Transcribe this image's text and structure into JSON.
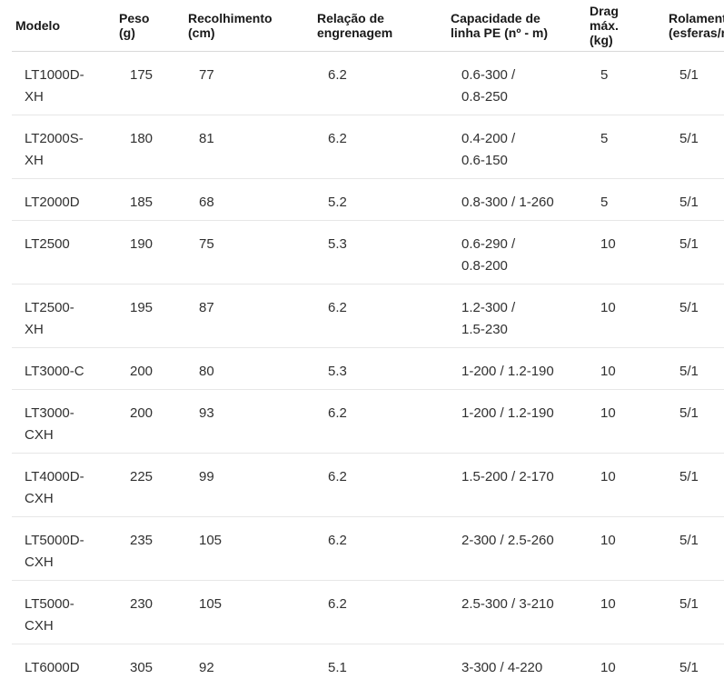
{
  "colors": {
    "background": "#ffffff",
    "header_text": "#191919",
    "body_text": "#303030",
    "header_border": "#d9d9d9",
    "row_border": "#e7e7e7"
  },
  "table": {
    "columns": [
      {
        "id": "modelo",
        "label": "Modelo"
      },
      {
        "id": "peso",
        "label": "Peso\n(g)"
      },
      {
        "id": "recolhimento",
        "label": "Recolhimento\n(cm)"
      },
      {
        "id": "relacao",
        "label": "Relação de\nengrenagem"
      },
      {
        "id": "capacidade",
        "label": "Capacidade de\nlinha PE (nº - m)"
      },
      {
        "id": "drag",
        "label": "Drag\nmáx.\n(kg)"
      },
      {
        "id": "rolamentos",
        "label": "Rolamentos\n(esferas/roletes)"
      }
    ],
    "rows": [
      {
        "modelo": "LT1000D-\nXH",
        "peso": "175",
        "recolhimento": "77",
        "relacao": "6.2",
        "capacidade": "0.6-300 /\n0.8-250",
        "drag": "5",
        "rolamentos": "5/1"
      },
      {
        "modelo": "LT2000S-\nXH",
        "peso": "180",
        "recolhimento": "81",
        "relacao": "6.2",
        "capacidade": "0.4-200 /\n0.6-150",
        "drag": "5",
        "rolamentos": "5/1"
      },
      {
        "modelo": "LT2000D",
        "peso": "185",
        "recolhimento": "68",
        "relacao": "5.2",
        "capacidade": "0.8-300 / 1-260",
        "drag": "5",
        "rolamentos": "5/1"
      },
      {
        "modelo": "LT2500",
        "peso": "190",
        "recolhimento": "75",
        "relacao": "5.3",
        "capacidade": "0.6-290 /\n0.8-200",
        "drag": "10",
        "rolamentos": "5/1"
      },
      {
        "modelo": "LT2500-\nXH",
        "peso": "195",
        "recolhimento": "87",
        "relacao": "6.2",
        "capacidade": "1.2-300 /\n1.5-230",
        "drag": "10",
        "rolamentos": "5/1"
      },
      {
        "modelo": "LT3000-C",
        "peso": "200",
        "recolhimento": "80",
        "relacao": "5.3",
        "capacidade": "1-200 / 1.2-190",
        "drag": "10",
        "rolamentos": "5/1"
      },
      {
        "modelo": "LT3000-\nCXH",
        "peso": "200",
        "recolhimento": "93",
        "relacao": "6.2",
        "capacidade": "1-200 / 1.2-190",
        "drag": "10",
        "rolamentos": "5/1"
      },
      {
        "modelo": "LT4000D-\nCXH",
        "peso": "225",
        "recolhimento": "99",
        "relacao": "6.2",
        "capacidade": "1.5-200 / 2-170",
        "drag": "10",
        "rolamentos": "5/1"
      },
      {
        "modelo": "LT5000D-\nCXH",
        "peso": "235",
        "recolhimento": "105",
        "relacao": "6.2",
        "capacidade": "2-300 / 2.5-260",
        "drag": "10",
        "rolamentos": "5/1"
      },
      {
        "modelo": "LT5000-\nCXH",
        "peso": "230",
        "recolhimento": "105",
        "relacao": "6.2",
        "capacidade": "2.5-300 / 3-210",
        "drag": "10",
        "rolamentos": "5/1"
      },
      {
        "modelo": "LT6000D",
        "peso": "305",
        "recolhimento": "92",
        "relacao": "5.1",
        "capacidade": "3-300 / 4-220",
        "drag": "10",
        "rolamentos": "5/1"
      }
    ]
  },
  "chart_data": {
    "type": "table",
    "title": "",
    "columns": [
      "Modelo",
      "Peso (g)",
      "Recolhimento (cm)",
      "Relação de engrenagem",
      "Capacidade de linha PE (nº - m)",
      "Drag máx. (kg)",
      "Rolamentos (esferas/roletes)"
    ],
    "rows": [
      [
        "LT1000D-XH",
        175,
        77,
        6.2,
        "0.6-300 / 0.8-250",
        5,
        "5/1"
      ],
      [
        "LT2000S-XH",
        180,
        81,
        6.2,
        "0.4-200 / 0.6-150",
        5,
        "5/1"
      ],
      [
        "LT2000D",
        185,
        68,
        5.2,
        "0.8-300 / 1-260",
        5,
        "5/1"
      ],
      [
        "LT2500",
        190,
        75,
        5.3,
        "0.6-290 / 0.8-200",
        10,
        "5/1"
      ],
      [
        "LT2500-XH",
        195,
        87,
        6.2,
        "1.2-300 / 1.5-230",
        10,
        "5/1"
      ],
      [
        "LT3000-C",
        200,
        80,
        5.3,
        "1-200 / 1.2-190",
        10,
        "5/1"
      ],
      [
        "LT3000-CXH",
        200,
        93,
        6.2,
        "1-200 / 1.2-190",
        10,
        "5/1"
      ],
      [
        "LT4000D-CXH",
        225,
        99,
        6.2,
        "1.5-200 / 2-170",
        10,
        "5/1"
      ],
      [
        "LT5000D-CXH",
        235,
        105,
        6.2,
        "2-300 / 2.5-260",
        10,
        "5/1"
      ],
      [
        "LT5000-CXH",
        230,
        105,
        6.2,
        "2.5-300 / 3-210",
        10,
        "5/1"
      ],
      [
        "LT6000D",
        305,
        92,
        5.1,
        "3-300 / 4-220",
        10,
        "5/1"
      ]
    ]
  }
}
